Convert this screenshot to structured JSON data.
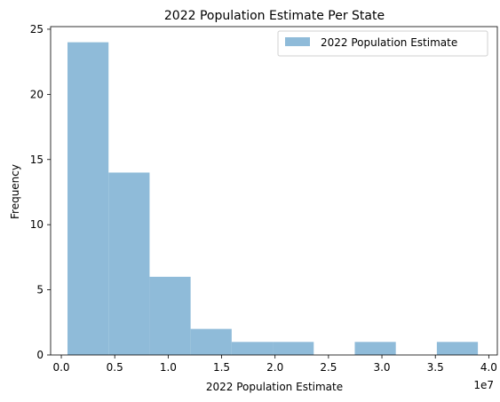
{
  "chart_data": {
    "type": "bar",
    "title": "2022 Population Estimate Per State",
    "xlabel": "2022 Population Estimate",
    "ylabel": "Frequency",
    "x_scale_label": "1e7",
    "bins": [
      {
        "start": 0.058,
        "end": 0.442,
        "count": 24
      },
      {
        "start": 0.442,
        "end": 0.826,
        "count": 14
      },
      {
        "start": 0.826,
        "end": 1.21,
        "count": 6
      },
      {
        "start": 1.21,
        "end": 1.594,
        "count": 2
      },
      {
        "start": 1.594,
        "end": 1.978,
        "count": 1
      },
      {
        "start": 1.978,
        "end": 2.362,
        "count": 1
      },
      {
        "start": 2.362,
        "end": 2.746,
        "count": 0
      },
      {
        "start": 2.746,
        "end": 3.13,
        "count": 1
      },
      {
        "start": 3.13,
        "end": 3.514,
        "count": 0
      },
      {
        "start": 3.514,
        "end": 3.898,
        "count": 1
      }
    ],
    "xlim": [
      -0.1,
      4.08
    ],
    "ylim": [
      0,
      25.2
    ],
    "xticks": [
      {
        "value": 0.0,
        "label": "0.0"
      },
      {
        "value": 0.5,
        "label": "0.5"
      },
      {
        "value": 1.0,
        "label": "1.0"
      },
      {
        "value": 1.5,
        "label": "1.5"
      },
      {
        "value": 2.0,
        "label": "2.0"
      },
      {
        "value": 2.5,
        "label": "2.5"
      },
      {
        "value": 3.0,
        "label": "3.0"
      },
      {
        "value": 3.5,
        "label": "3.5"
      },
      {
        "value": 4.0,
        "label": "4.0"
      }
    ],
    "yticks": [
      {
        "value": 0,
        "label": "0"
      },
      {
        "value": 5,
        "label": "5"
      },
      {
        "value": 10,
        "label": "10"
      },
      {
        "value": 15,
        "label": "15"
      },
      {
        "value": 20,
        "label": "20"
      },
      {
        "value": 25,
        "label": "25"
      }
    ],
    "series": [
      {
        "name": "2022 Population Estimate",
        "color": "#8fbbd9"
      }
    ],
    "legend_position": "top-right",
    "grid": false
  }
}
